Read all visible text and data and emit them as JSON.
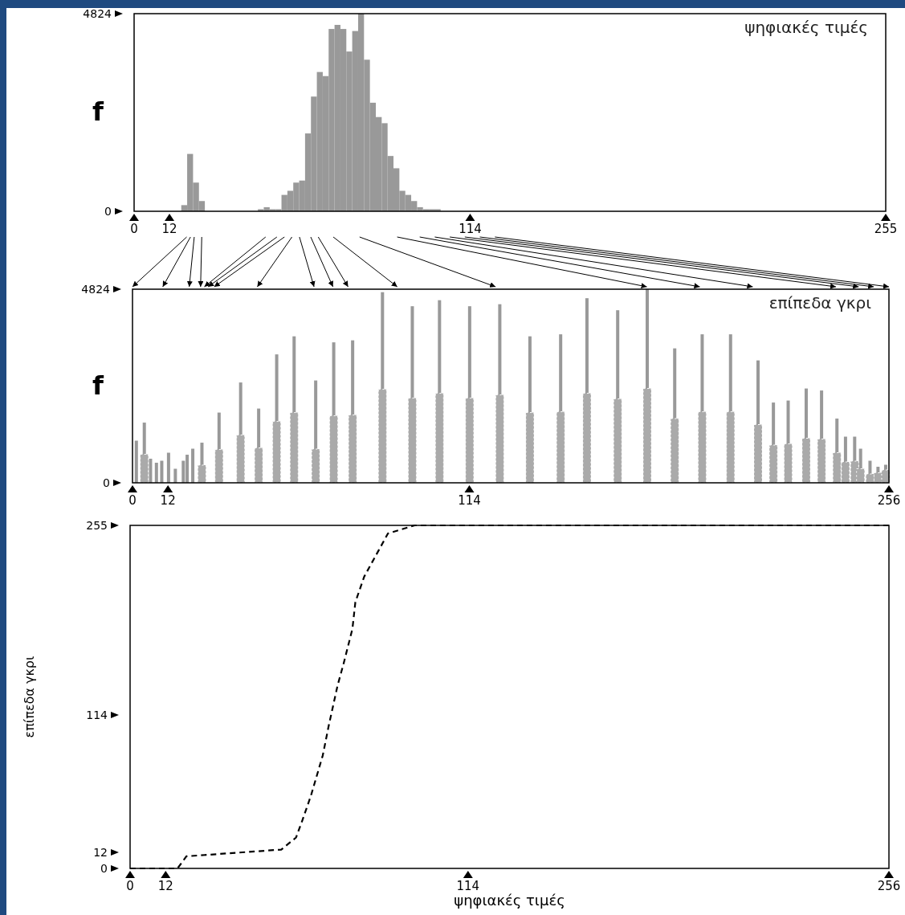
{
  "chart_data": [
    {
      "type": "histogram",
      "title": "ψηφιακές τιμές",
      "ylabel": "f",
      "color": "#999999",
      "xlim": [
        0,
        255
      ],
      "xticks": [
        0,
        12,
        114,
        255
      ],
      "ylim": [
        0,
        4824
      ],
      "yticks": [
        0,
        4824
      ],
      "bins": [
        16,
        18,
        20,
        22,
        24,
        42,
        44,
        46,
        48,
        50,
        52,
        54,
        56,
        58,
        60,
        62,
        64,
        66,
        68,
        70,
        72,
        74,
        76,
        78,
        80,
        82,
        84,
        86,
        88,
        90,
        92,
        94,
        96,
        98,
        100,
        104
      ],
      "values": [
        150,
        1400,
        700,
        250,
        0,
        50,
        100,
        50,
        50,
        400,
        500,
        700,
        750,
        1900,
        2800,
        3400,
        3300,
        4450,
        4550,
        4450,
        3900,
        4400,
        4824,
        3700,
        2650,
        2300,
        2150,
        1350,
        1050,
        500,
        400,
        250,
        100,
        50,
        50
      ]
    },
    {
      "type": "bar",
      "title": "επίπεδα γκρι",
      "ylabel": "f",
      "xlim": [
        0,
        256
      ],
      "xticks": [
        0,
        12,
        114,
        256
      ],
      "ylim": [
        0,
        4824
      ],
      "yticks": [
        0,
        4824
      ],
      "series": [
        {
          "type": "bar",
          "color": "#999999",
          "x": [
            1.3,
            4,
            6.1,
            8.1,
            9.9,
            12.2,
            14.5,
            17.2,
            18.5,
            20.4,
            23.5,
            29.3,
            36.6,
            42.7,
            48.8,
            54.7,
            62,
            68.1,
            74.5,
            84.6,
            94.7,
            103.9,
            114.1,
            124.3,
            134.5,
            144.9,
            153.8,
            164.2,
            174.2,
            183.5,
            192.8,
            202.4,
            211.7,
            216.9,
            221.9,
            228,
            233.2,
            238.4,
            241.3,
            244.4,
            246.4,
            249.6,
            252.3,
            254.9
          ],
          "values": [
            1050,
            1500,
            600,
            500,
            550,
            750,
            350,
            550,
            700,
            850,
            1000,
            1750,
            2500,
            1850,
            3200,
            3650,
            2550,
            3500,
            3550,
            4750,
            4400,
            4550,
            4400,
            4450,
            3650,
            3700,
            4600,
            4300,
            4824,
            3350,
            3700,
            3700,
            3050,
            2000,
            2050,
            2350,
            2300,
            1600,
            1150,
            1150,
            850,
            550,
            400,
            450
          ]
        },
        {
          "type": "bar",
          "color": "#aaaaaa",
          "x": [
            4,
            23.5,
            29.3,
            36.6,
            42.7,
            48.8,
            54.7,
            62,
            68.1,
            74.5,
            84.6,
            94.7,
            103.9,
            114.1,
            124.3,
            134.5,
            144.9,
            153.8,
            164.2,
            174.2,
            183.5,
            192.8,
            202.4,
            211.7,
            216.9,
            221.9,
            228,
            233.2,
            238.4,
            241.3,
            244.4,
            246.4,
            249.6,
            252.3,
            254.9
          ],
          "values": [
            710,
            440,
            830,
            1190,
            870,
            1530,
            1750,
            840,
            1670,
            1690,
            2330,
            2110,
            2230,
            2110,
            2190,
            1750,
            1770,
            2230,
            2090,
            2350,
            1600,
            1770,
            1770,
            1450,
            940,
            970,
            1110,
            1090,
            750,
            520,
            540,
            350,
            220,
            250,
            320
          ]
        }
      ]
    },
    {
      "type": "line",
      "xlabel": "ψηφιακές τιμές",
      "ylabel": "επίπεδα γκρι",
      "color": "#000000",
      "line_style": "dashed",
      "xlim": [
        0,
        256
      ],
      "xticks": [
        0,
        12,
        114,
        256
      ],
      "ylim": [
        0,
        255
      ],
      "yticks": [
        0,
        12,
        114,
        255
      ],
      "x": [
        0,
        16,
        19,
        51,
        56,
        58,
        61,
        65,
        67,
        70,
        72,
        75,
        76,
        79,
        84,
        87,
        96,
        256
      ],
      "values": [
        0,
        0,
        9,
        14,
        23,
        35,
        54,
        84,
        106,
        136,
        152,
        178,
        198,
        217,
        237,
        249,
        255,
        255
      ]
    }
  ]
}
